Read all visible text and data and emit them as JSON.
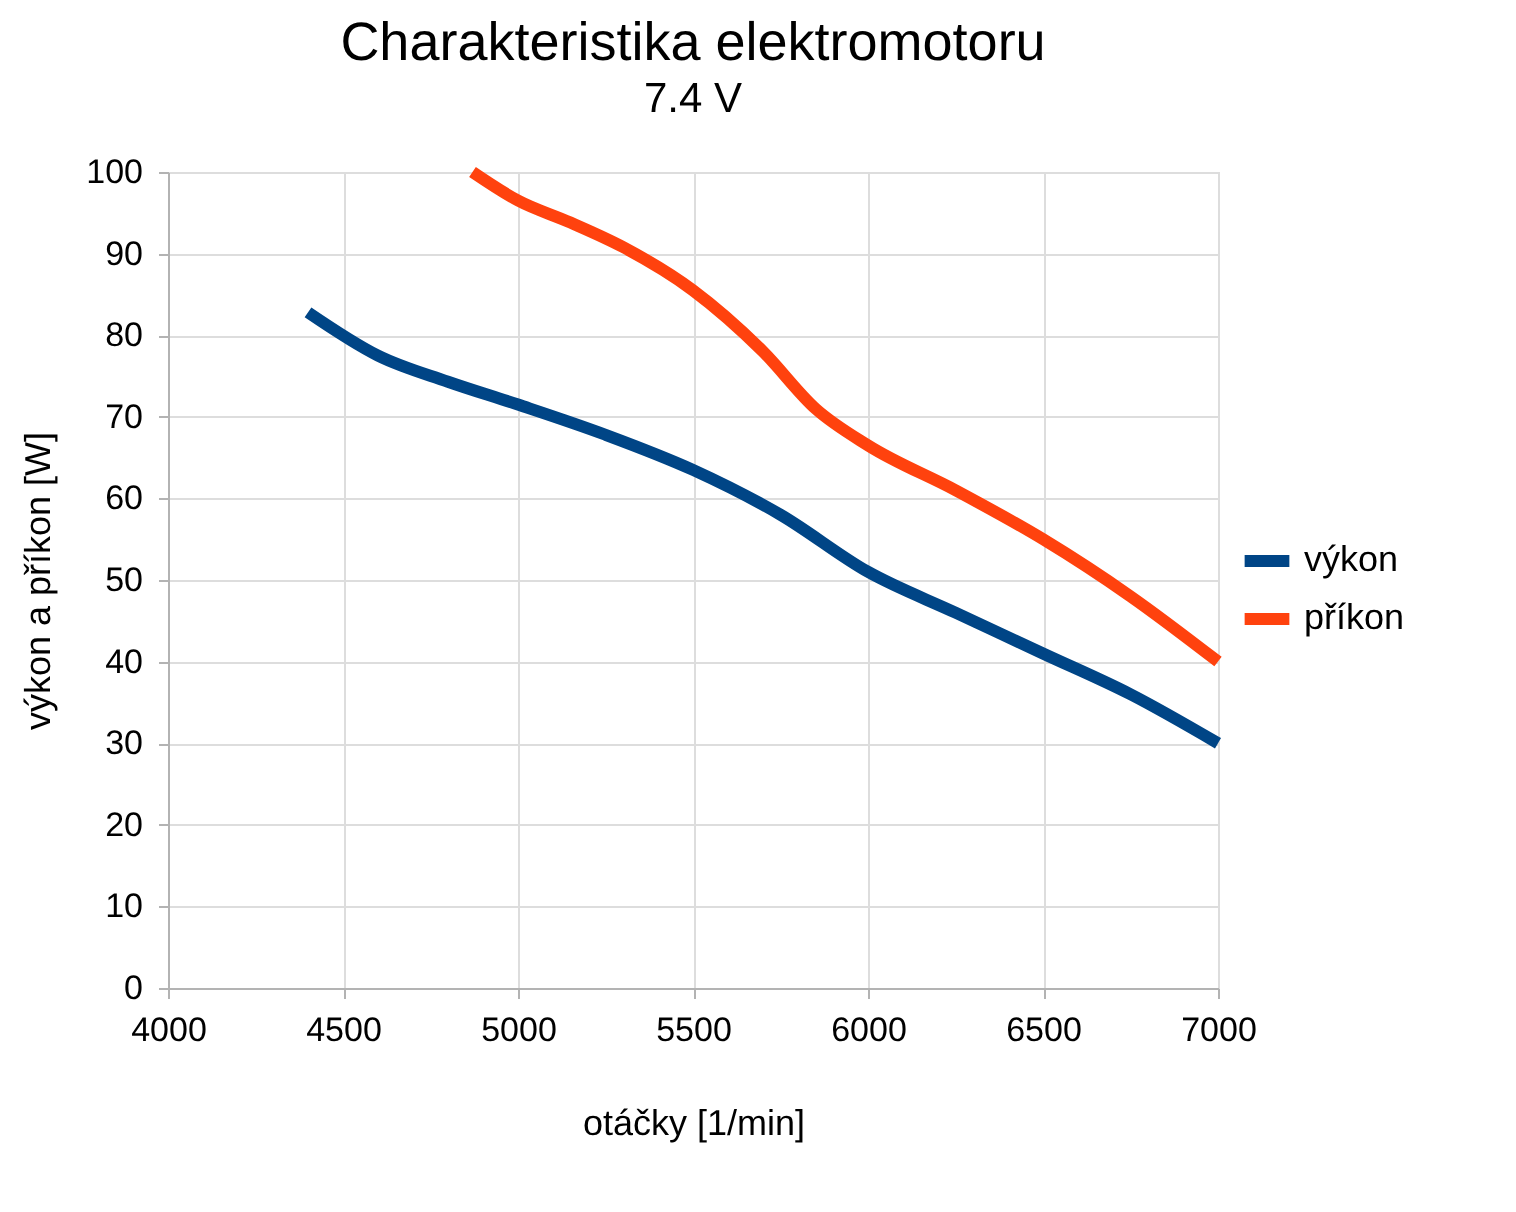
{
  "chart_data": {
    "type": "line",
    "title": "Charakteristika elektromotoru",
    "subtitle": "7.4 V",
    "xlabel": "otáčky [1/min]",
    "ylabel": "výkon a příkon [W]",
    "xlim": [
      4000,
      7000
    ],
    "xticks": [
      4000,
      4500,
      5000,
      5500,
      6000,
      6500,
      7000
    ],
    "ylim": [
      0,
      100
    ],
    "yticks": [
      0,
      10,
      20,
      30,
      40,
      50,
      60,
      70,
      80,
      90,
      100
    ],
    "grid": true,
    "legend": "right",
    "line_style": "solid",
    "marker": "none",
    "series": [
      {
        "name": "výkon",
        "color": "#004586",
        "x": [
          4400,
          4600,
          4800,
          5000,
          5250,
          5500,
          5750,
          6000,
          6250,
          6500,
          6750,
          7000
        ],
        "values": [
          82.8,
          77.5,
          74.3,
          71.5,
          67.8,
          63.5,
          58,
          51,
          46,
          41,
          36,
          30
        ]
      },
      {
        "name": "příkon",
        "color": "#ff420e",
        "x": [
          4870,
          5000,
          5150,
          5300,
          5500,
          5700,
          5850,
          6000,
          6250,
          6500,
          6750,
          7000
        ],
        "values": [
          100,
          96.5,
          93.8,
          90.8,
          85.5,
          78,
          71,
          66.5,
          61,
          55,
          48,
          40
        ]
      }
    ]
  }
}
